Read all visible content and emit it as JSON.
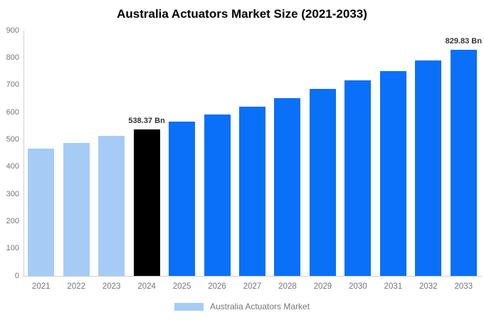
{
  "chart_data": {
    "type": "bar",
    "title": "Australia Actuators Market Size (2021-2033)",
    "xlabel": "",
    "ylabel": "",
    "categories": [
      "2021",
      "2022",
      "2023",
      "2024",
      "2025",
      "2026",
      "2027",
      "2028",
      "2029",
      "2030",
      "2031",
      "2032",
      "2033"
    ],
    "values": [
      466,
      489,
      513,
      538.37,
      565,
      593,
      622,
      653,
      685,
      717,
      752,
      790,
      829.83
    ],
    "bar_colors": [
      "#a6ccf5",
      "#a6ccf5",
      "#a6ccf5",
      "#000000",
      "#0a70f8",
      "#0a70f8",
      "#0a70f8",
      "#0a70f8",
      "#0a70f8",
      "#0a70f8",
      "#0a70f8",
      "#0a70f8",
      "#0a70f8"
    ],
    "annotations": [
      {
        "category": "2024",
        "index": 3,
        "text": "538.37 Bn"
      },
      {
        "category": "2033",
        "index": 12,
        "text": "829.83 Bn"
      }
    ],
    "ylim": [
      0,
      900
    ],
    "y_ticks": [
      0,
      100,
      200,
      300,
      400,
      500,
      600,
      700,
      800,
      900
    ],
    "grid": false,
    "legend": {
      "position": "bottom",
      "items": [
        {
          "label": "Australia Actuators Market",
          "color": "#a6ccf5"
        }
      ]
    }
  },
  "colors": {
    "series_past": "#a6ccf5",
    "series_base_year": "#000000",
    "series_forecast": "#0a70f8",
    "axis_line": "#d0d0d0",
    "tick_text": "#757575",
    "annotation_text": "#333333",
    "background": "#ffffff"
  }
}
